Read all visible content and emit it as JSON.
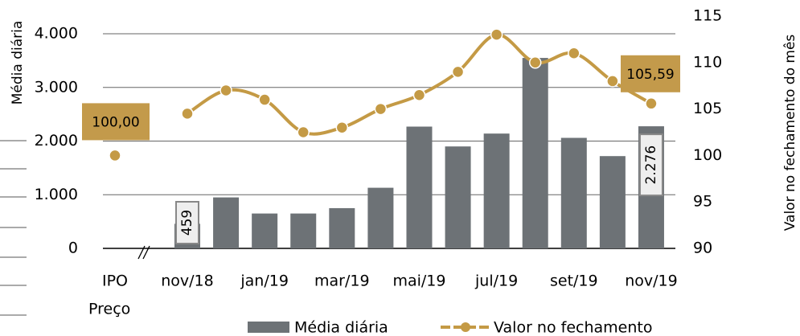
{
  "chart_data": {
    "type": "bar-line",
    "y_label": "Média diária",
    "y2_label": "Valor no fechamento do mês",
    "x_note": "Preço",
    "categories": [
      "IPO",
      "nov/18",
      null,
      "jan/19",
      null,
      "mar/19",
      null,
      "mai/19",
      null,
      "jul/19",
      null,
      "set/19",
      null,
      "nov/19"
    ],
    "series": [
      {
        "name": "Média diária",
        "type": "bar",
        "color": "#6d7276",
        "values": [
          null,
          459,
          950,
          650,
          650,
          750,
          1130,
          2270,
          1900,
          2140,
          3550,
          2060,
          1720,
          2276
        ],
        "value_labels": [
          null,
          "459",
          null,
          null,
          null,
          null,
          null,
          null,
          null,
          null,
          null,
          null,
          null,
          "2.276"
        ]
      },
      {
        "name": "Valor no fechamento",
        "type": "line",
        "axis": "y2",
        "color": "#c49a45",
        "values": [
          100,
          104.5,
          107,
          106,
          102.5,
          103,
          105,
          106.5,
          109,
          113,
          110,
          111,
          108,
          105.59
        ],
        "value_labels": [
          "100,00",
          null,
          null,
          null,
          null,
          null,
          null,
          null,
          null,
          null,
          null,
          null,
          null,
          "105,59"
        ]
      }
    ],
    "ylim": [
      0,
      4330
    ],
    "yticks": [
      0,
      {
        "value": 1000,
        "label": "1.000"
      },
      {
        "value": 2000,
        "label": "2.000"
      },
      {
        "value": 3000,
        "label": "3.000"
      },
      {
        "value": 4000,
        "label": "4.000"
      }
    ],
    "y2lim": [
      90,
      115
    ],
    "y2ticks": [
      90,
      95,
      100,
      105,
      110,
      115
    ],
    "grid": true
  }
}
